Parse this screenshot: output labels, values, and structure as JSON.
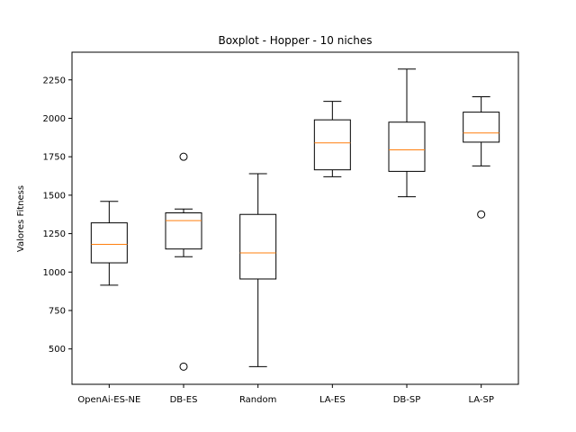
{
  "chart_data": {
    "type": "boxplot",
    "title": "Boxplot - Hopper - 10 niches",
    "xlabel": "",
    "ylabel": "Valores Fitness",
    "ylim": [
      270,
      2430
    ],
    "yticks": [
      500,
      750,
      1000,
      1250,
      1500,
      1750,
      2000,
      2250
    ],
    "grid": false,
    "box_color": "#000000",
    "median_color": "#ff7f0e",
    "categories": [
      "OpenAi-ES-NE",
      "DB-ES",
      "Random",
      "LA-ES",
      "DB-SP",
      "LA-SP"
    ],
    "boxes": [
      {
        "label": "OpenAi-ES-NE",
        "whisker_low": 915,
        "q1": 1060,
        "median": 1180,
        "q3": 1320,
        "whisker_high": 1460,
        "outliers": []
      },
      {
        "label": "DB-ES",
        "whisker_low": 1100,
        "q1": 1150,
        "median": 1335,
        "q3": 1385,
        "whisker_high": 1410,
        "outliers": [
          1750,
          385
        ]
      },
      {
        "label": "Random",
        "whisker_low": 385,
        "q1": 955,
        "median": 1125,
        "q3": 1375,
        "whisker_high": 1640,
        "outliers": []
      },
      {
        "label": "LA-ES",
        "whisker_low": 1620,
        "q1": 1665,
        "median": 1840,
        "q3": 1990,
        "whisker_high": 2110,
        "outliers": []
      },
      {
        "label": "DB-SP",
        "whisker_low": 1490,
        "q1": 1655,
        "median": 1795,
        "q3": 1975,
        "whisker_high": 2320,
        "outliers": []
      },
      {
        "label": "LA-SP",
        "whisker_low": 1690,
        "q1": 1845,
        "median": 1905,
        "q3": 2040,
        "whisker_high": 2140,
        "outliers": [
          1375
        ]
      }
    ]
  }
}
